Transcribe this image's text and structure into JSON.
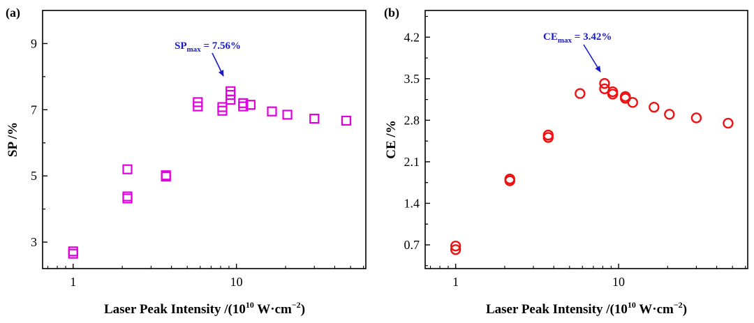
{
  "chart_data": [
    {
      "type": "scatter",
      "panel_label": "(a)",
      "title": "",
      "xlabel": {
        "main": "Laser Peak Intensity /(10",
        "exp1": "10",
        "mid": " W·cm",
        "exp2": "−2",
        "end": ")"
      },
      "ylabel": "SP /%",
      "xscale": "log",
      "xlim": [
        0.65,
        62
      ],
      "ylim": [
        2.2,
        10.0
      ],
      "xticks": [
        1,
        10
      ],
      "xtick_labels": [
        "1",
        "10"
      ],
      "yticks": [
        3,
        5,
        7,
        9
      ],
      "ytick_labels": [
        "3",
        "5",
        "7",
        "9"
      ],
      "marker": "square",
      "color": "#e000e0",
      "points": [
        {
          "x": 1.0,
          "y": 2.65
        },
        {
          "x": 1.0,
          "y": 2.72
        },
        {
          "x": 2.15,
          "y": 4.32
        },
        {
          "x": 2.15,
          "y": 4.38
        },
        {
          "x": 2.15,
          "y": 5.2
        },
        {
          "x": 3.7,
          "y": 4.98
        },
        {
          "x": 3.7,
          "y": 5.02
        },
        {
          "x": 5.8,
          "y": 7.1
        },
        {
          "x": 5.8,
          "y": 7.23
        },
        {
          "x": 8.2,
          "y": 6.97
        },
        {
          "x": 8.2,
          "y": 7.08
        },
        {
          "x": 9.2,
          "y": 7.3
        },
        {
          "x": 9.2,
          "y": 7.45
        },
        {
          "x": 9.2,
          "y": 7.56
        },
        {
          "x": 11.0,
          "y": 7.1
        },
        {
          "x": 11.0,
          "y": 7.2
        },
        {
          "x": 12.2,
          "y": 7.15
        },
        {
          "x": 16.5,
          "y": 6.95
        },
        {
          "x": 20.5,
          "y": 6.85
        },
        {
          "x": 30.0,
          "y": 6.73
        },
        {
          "x": 47.0,
          "y": 6.67
        }
      ],
      "annotation": {
        "base": "SP",
        "sub": "max",
        "value": " = 7.56%",
        "color": "#1a1acc",
        "arrow_to": {
          "x": 9.2,
          "y": 7.56
        }
      }
    },
    {
      "type": "scatter",
      "panel_label": "(b)",
      "title": "",
      "xlabel": {
        "main": "Laser Peak Intensity /(10",
        "exp1": "10",
        "mid": " W·cm",
        "exp2": "−2",
        "end": ")"
      },
      "ylabel": "CE /%",
      "xscale": "log",
      "xlim": [
        0.65,
        62
      ],
      "ylim": [
        0.3,
        4.65
      ],
      "xticks": [
        1,
        10
      ],
      "xtick_labels": [
        "1",
        "10"
      ],
      "yticks": [
        0.7,
        1.4,
        2.1,
        2.8,
        3.5,
        4.2
      ],
      "ytick_labels": [
        "0.7",
        "1.4",
        "2.1",
        "2.8",
        "3.5",
        "4.2"
      ],
      "marker": "circle",
      "color": "#ee1111",
      "points": [
        {
          "x": 1.0,
          "y": 0.62
        },
        {
          "x": 1.0,
          "y": 0.68
        },
        {
          "x": 2.15,
          "y": 1.78
        },
        {
          "x": 2.15,
          "y": 1.81
        },
        {
          "x": 3.7,
          "y": 2.51
        },
        {
          "x": 3.7,
          "y": 2.55
        },
        {
          "x": 5.8,
          "y": 3.25
        },
        {
          "x": 8.2,
          "y": 3.33
        },
        {
          "x": 8.2,
          "y": 3.42
        },
        {
          "x": 9.2,
          "y": 3.24
        },
        {
          "x": 9.2,
          "y": 3.28
        },
        {
          "x": 11.0,
          "y": 3.17
        },
        {
          "x": 11.0,
          "y": 3.2
        },
        {
          "x": 12.2,
          "y": 3.1
        },
        {
          "x": 16.5,
          "y": 3.02
        },
        {
          "x": 20.5,
          "y": 2.9
        },
        {
          "x": 30.0,
          "y": 2.84
        },
        {
          "x": 47.0,
          "y": 2.75
        }
      ],
      "annotation": {
        "base": "CE",
        "sub": "max",
        "value": " = 3.42%",
        "color": "#1a1acc",
        "arrow_to": {
          "x": 8.2,
          "y": 3.42
        }
      }
    }
  ]
}
